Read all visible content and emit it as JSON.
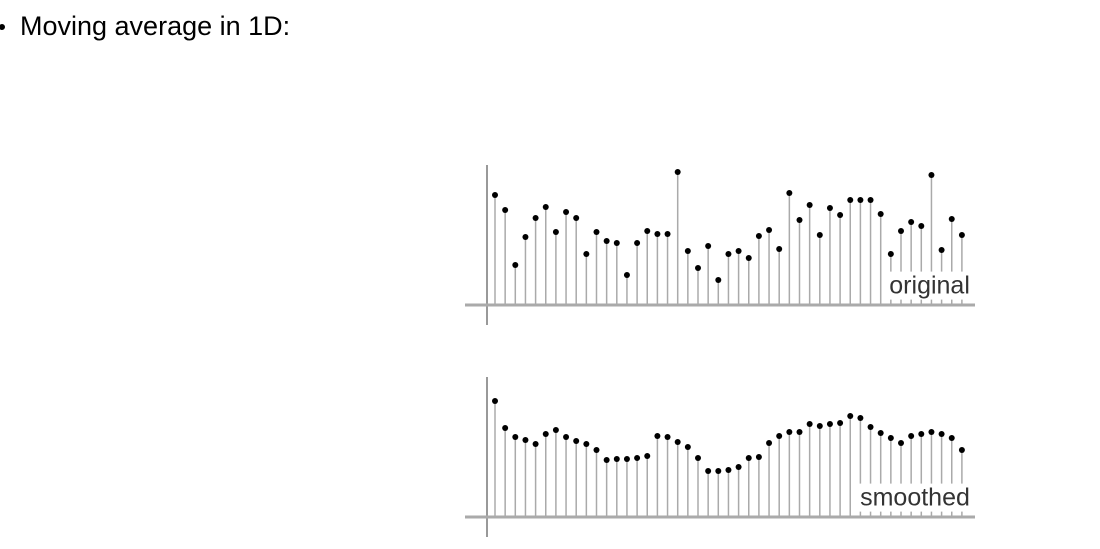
{
  "header": {
    "bullet_text": "Moving average in 1D:"
  },
  "chart_data": [
    {
      "type": "stem",
      "label": "original",
      "ylim": [
        0,
        140
      ],
      "values": [
        110,
        95,
        40,
        68,
        87,
        98,
        73,
        93,
        87,
        51,
        73,
        64,
        62,
        30,
        62,
        74,
        71,
        71,
        133,
        54,
        37,
        59,
        25,
        51,
        54,
        47,
        69,
        75,
        56,
        112,
        85,
        100,
        70,
        97,
        90,
        105,
        105,
        105,
        91,
        51,
        74,
        83,
        79,
        130,
        55,
        86,
        70
      ]
    },
    {
      "type": "stem",
      "label": "smoothed",
      "ylim": [
        0,
        140
      ],
      "values": [
        116,
        89,
        80,
        77,
        73,
        83,
        87,
        80,
        76,
        73,
        67,
        57,
        58,
        58,
        59,
        61,
        81,
        80,
        75,
        70,
        59,
        46,
        46,
        47,
        50,
        59,
        60,
        74,
        81,
        85,
        85,
        93,
        91,
        93,
        94,
        101,
        99,
        90,
        84,
        79,
        74,
        81,
        83,
        85,
        83,
        79,
        67
      ]
    }
  ]
}
